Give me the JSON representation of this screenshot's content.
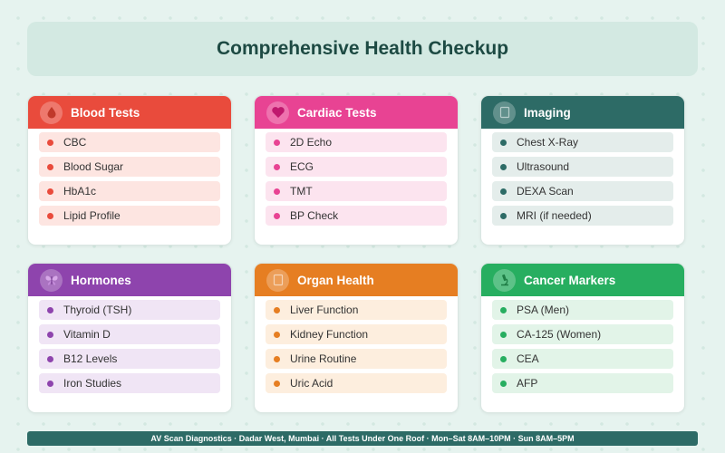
{
  "header": {
    "title": "Comprehensive Health Checkup"
  },
  "cards": [
    {
      "title": "Blood Tests",
      "icon": "blood-drop-icon",
      "accent": "#e94b3c",
      "item_bg": "#fde5e1",
      "items": [
        "CBC",
        "Blood Sugar",
        "HbA1c",
        "Lipid Profile"
      ]
    },
    {
      "title": "Cardiac Tests",
      "icon": "heart-icon",
      "accent": "#e84393",
      "item_bg": "#fce4ef",
      "items": [
        "2D Echo",
        "ECG",
        "TMT",
        "BP Check"
      ]
    },
    {
      "title": "Imaging",
      "icon": "imaging-icon",
      "accent": "#2d6b66",
      "item_bg": "#e4edeb",
      "items": [
        "Chest X-Ray",
        "Ultrasound",
        "DEXA Scan",
        "MRI (if needed)"
      ]
    },
    {
      "title": "Hormones",
      "icon": "butterfly-icon",
      "accent": "#8e44ad",
      "item_bg": "#f0e5f5",
      "items": [
        "Thyroid (TSH)",
        "Vitamin D",
        "B12 Levels",
        "Iron Studies"
      ]
    },
    {
      "title": "Organ Health",
      "icon": "organ-icon",
      "accent": "#e67e22",
      "item_bg": "#fdeede",
      "items": [
        "Liver Function",
        "Kidney Function",
        "Urine Routine",
        "Uric Acid"
      ]
    },
    {
      "title": "Cancer Markers",
      "icon": "microscope-icon",
      "accent": "#27ae60",
      "item_bg": "#e2f4e8",
      "items": [
        "PSA (Men)",
        "CA-125 (Women)",
        "CEA",
        "AFP"
      ]
    }
  ],
  "footer": {
    "text": "AV Scan Diagnostics · Dadar West, Mumbai · All Tests Under One Roof · Mon–Sat 8AM–10PM · Sun 8AM–5PM"
  }
}
